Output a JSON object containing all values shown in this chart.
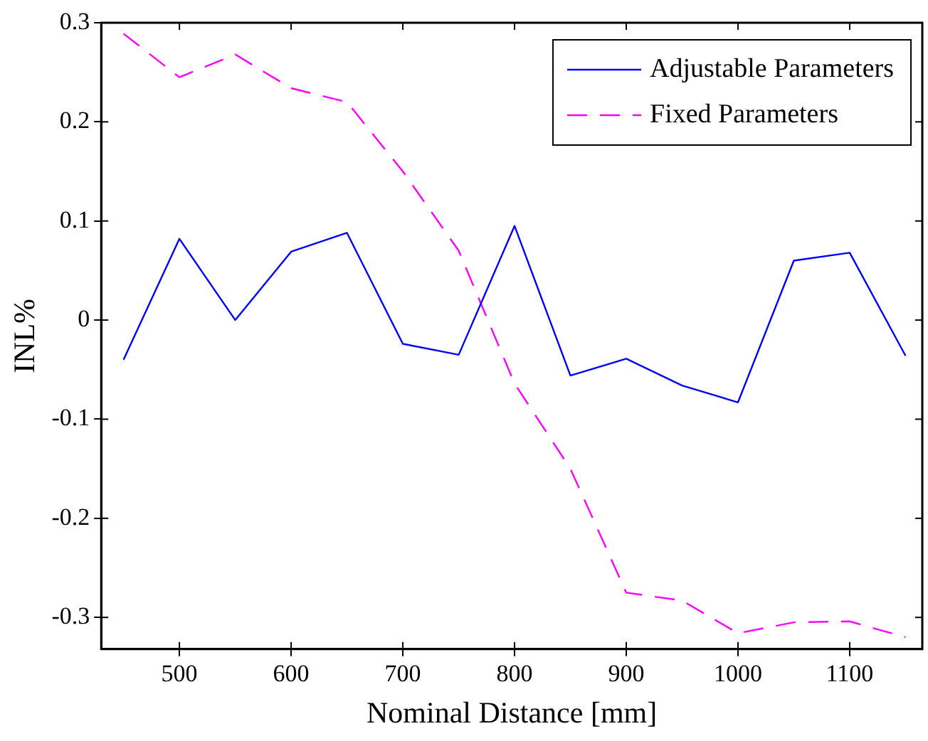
{
  "chart_data": {
    "type": "line",
    "xlabel": "Nominal Distance [mm]",
    "ylabel": "INL%",
    "x": [
      450,
      500,
      550,
      600,
      650,
      700,
      750,
      800,
      850,
      900,
      950,
      1000,
      1050,
      1100,
      1150
    ],
    "series": [
      {
        "name": "Adjustable Parameters",
        "color": "#0000ff",
        "line_style": "solid",
        "values": [
          -0.04,
          0.082,
          0.0,
          0.069,
          0.088,
          -0.024,
          -0.035,
          0.095,
          -0.056,
          -0.039,
          -0.066,
          -0.083,
          0.06,
          0.068,
          -0.036
        ]
      },
      {
        "name": "Fixed Parameters",
        "color": "#ff00ff",
        "line_style": "dashed",
        "values": [
          0.289,
          0.245,
          0.268,
          0.234,
          0.22,
          0.15,
          0.07,
          -0.064,
          -0.15,
          -0.275,
          -0.283,
          -0.316,
          -0.305,
          -0.304,
          -0.32
        ]
      }
    ],
    "xlim": [
      430,
      1165
    ],
    "xticks": [
      500,
      600,
      700,
      800,
      900,
      1000,
      1100
    ],
    "ylim": [
      -0.332,
      0.3
    ],
    "yticks": [
      -0.3,
      -0.2,
      -0.1,
      0,
      0.1,
      0.2,
      0.3
    ],
    "grid": false,
    "legend": "top right",
    "marker": "none"
  }
}
